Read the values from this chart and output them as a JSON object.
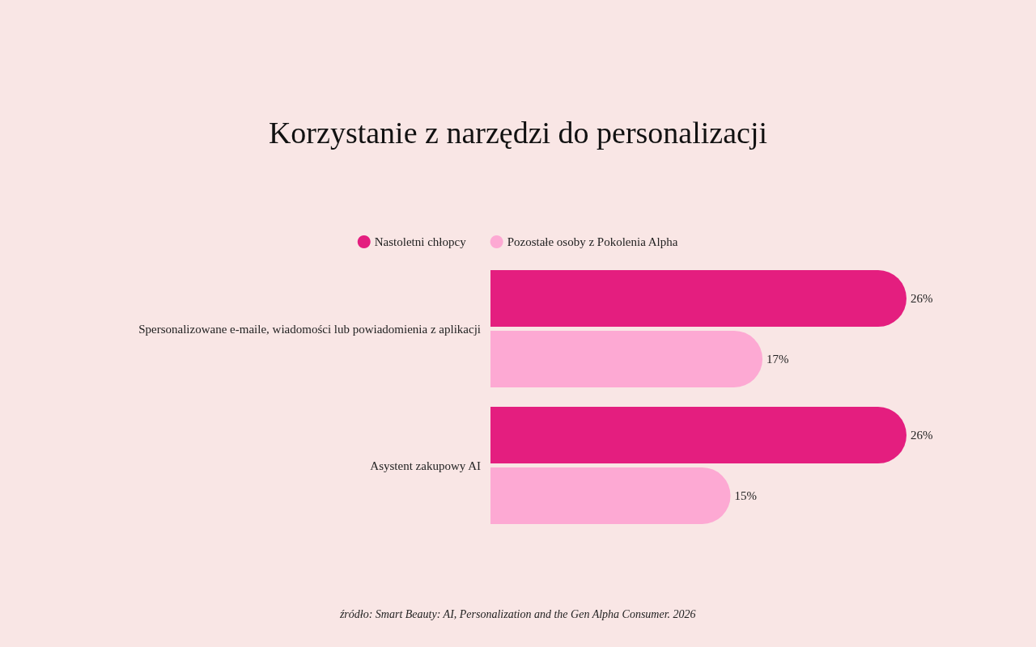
{
  "chart_data": {
    "type": "bar",
    "orientation": "horizontal",
    "title": "Korzystanie z narzędzi do personalizacji",
    "categories": [
      "Spersonalizowane e-maile, wiadomości lub powiadomienia z aplikacji",
      "Asystent zakupowy AI"
    ],
    "series": [
      {
        "name": "Nastoletni chłopcy",
        "color": "#e41e7f",
        "values": [
          26,
          26
        ],
        "value_labels": [
          "26%",
          "26%"
        ]
      },
      {
        "name": "Pozostałe osoby z Pokolenia Alpha",
        "color": "#fda9d3",
        "values": [
          17,
          15
        ],
        "value_labels": [
          "17%",
          "15%"
        ]
      }
    ],
    "xlim": [
      0,
      26
    ],
    "legend": "top",
    "tick_labels": "y",
    "annotations": [
      "źródło: Smart Beauty: AI, Personalization and the Gen Alpha Consumer. 2026"
    ]
  }
}
